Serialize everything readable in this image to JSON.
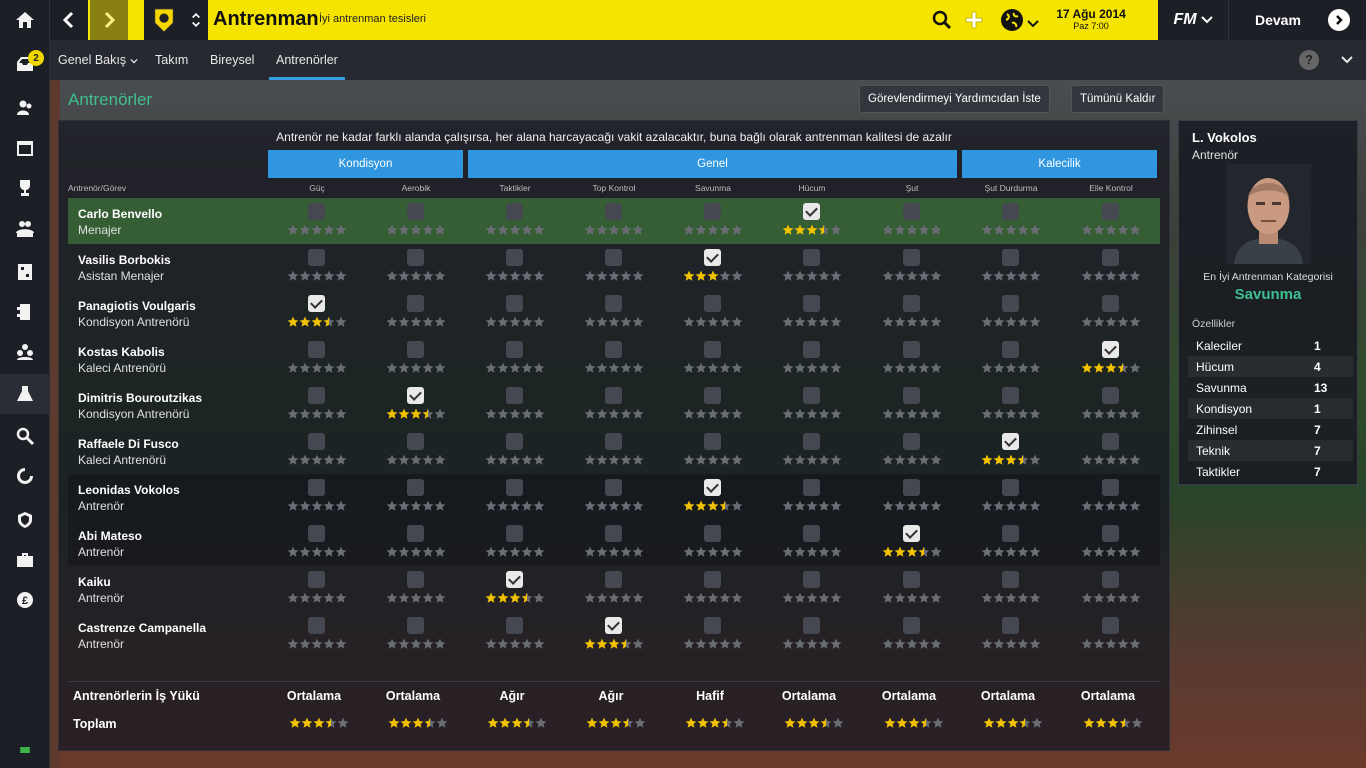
{
  "topbar": {
    "title": "Antrenman",
    "subtitle": "İyi antrenman tesisleri",
    "date": "17 Ağu 2014",
    "time": "Paz 7:00",
    "brand": "FM",
    "continue": "Devam"
  },
  "leftbar": {
    "inbox_badge": "2"
  },
  "subnav": {
    "tabs": [
      "Genel Bakış",
      "Takım",
      "Bireysel",
      "Antrenörler"
    ],
    "active": "Antrenörler",
    "help": "?"
  },
  "header": {
    "title": "Antrenörler",
    "assign_button": "Görevlendirmeyi Yardımcıdan İste",
    "clear_button": "Tümünü Kaldır"
  },
  "notice": "Antrenör ne kadar farklı alanda çalışırsa, her alana harcayacağı vakit azalacaktır, buna bağlı olarak antrenman kalitesi de azalır",
  "categories": [
    "Kondisyon",
    "Genel",
    "Kalecilik"
  ],
  "first_column_header": "Antrenör/Görev",
  "columns": [
    "Güç",
    "Aerobik",
    "Taktikler",
    "Top Kontrol",
    "Savunma",
    "Hücum",
    "Şut",
    "Şut Durdurma",
    "Elle Kontrol"
  ],
  "coaches": [
    {
      "name": "Carlo Benvello",
      "role": "Menajer",
      "assigned": 5,
      "rating": 3.5
    },
    {
      "name": "Vasilis Borbokis",
      "role": "Asistan Menajer",
      "assigned": 4,
      "rating": 3
    },
    {
      "name": "Panagiotis Voulgaris",
      "role": "Kondisyon Antrenörü",
      "assigned": 0,
      "rating": 3.5
    },
    {
      "name": "Kostas Kabolis",
      "role": "Kaleci Antrenörü",
      "assigned": 8,
      "rating": 3.5
    },
    {
      "name": "Dimitris Bouroutzikas",
      "role": "Kondisyon Antrenörü",
      "assigned": 1,
      "rating": 3.5
    },
    {
      "name": "Raffaele Di Fusco",
      "role": "Kaleci Antrenörü",
      "assigned": 7,
      "rating": 3.5
    },
    {
      "name": "Leonidas Vokolos",
      "role": "Antrenör",
      "assigned": 4,
      "rating": 3.5
    },
    {
      "name": "Abi Mateso",
      "role": "Antrenör",
      "assigned": 6,
      "rating": 3.5
    },
    {
      "name": "Kaiku",
      "role": "Antrenör",
      "assigned": 2,
      "rating": 3.5
    },
    {
      "name": "Castrenze Campanella",
      "role": "Antrenör",
      "assigned": 3,
      "rating": 3.5
    }
  ],
  "workload": {
    "label": "Antrenörlerin İş Yükü",
    "values": [
      "Ortalama",
      "Ortalama",
      "Ağır",
      "Ağır",
      "Hafif",
      "Ortalama",
      "Ortalama",
      "Ortalama",
      "Ortalama"
    ]
  },
  "total": {
    "label": "Toplam",
    "ratings": [
      3.5,
      3.5,
      3.5,
      3.5,
      3.5,
      3.5,
      3.5,
      3.5,
      3.5
    ]
  },
  "card": {
    "name": "L. Vokolos",
    "role": "Antrenör",
    "best_label": "En İyi Antrenman Kategorisi",
    "best_value": "Savunma",
    "attributes_label": "Özellikler",
    "attributes": [
      {
        "k": "Kaleciler",
        "v": "1"
      },
      {
        "k": "Hücum",
        "v": "4"
      },
      {
        "k": "Savunma",
        "v": "13"
      },
      {
        "k": "Kondisyon",
        "v": "1"
      },
      {
        "k": "Zihinsel",
        "v": "7"
      },
      {
        "k": "Teknik",
        "v": "7"
      },
      {
        "k": "Taktikler",
        "v": "7"
      }
    ]
  },
  "colors": {
    "accent": "#2f96df",
    "brand": "#f5e400",
    "star": "#f2c200",
    "green_text": "#3fbf8f"
  }
}
